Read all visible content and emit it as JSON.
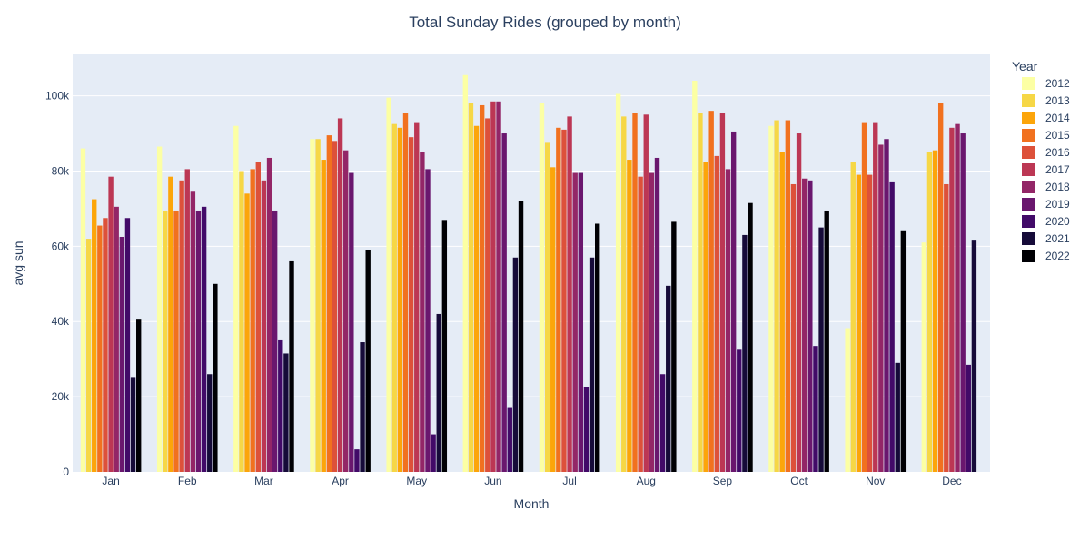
{
  "chart_data": {
    "type": "bar",
    "title": "Total Sunday Rides (grouped by month)",
    "xlabel": "Month",
    "ylabel": "avg sun",
    "ylim": [
      0,
      111000
    ],
    "yticks": [
      0,
      20000,
      40000,
      60000,
      80000,
      100000
    ],
    "ytick_labels": [
      "0",
      "20k",
      "40k",
      "60k",
      "80k",
      "100k"
    ],
    "legend_title": "Year",
    "legend_position": "right",
    "grid": true,
    "categories": [
      "Jan",
      "Feb",
      "Mar",
      "Apr",
      "May",
      "Jun",
      "Jul",
      "Aug",
      "Sep",
      "Oct",
      "Nov",
      "Dec"
    ],
    "series": [
      {
        "name": "2012",
        "color": "#fcffa4",
        "values": [
          86000,
          86500,
          92000,
          88500,
          99500,
          105500,
          98000,
          100500,
          104000,
          92000,
          38000,
          61000
        ]
      },
      {
        "name": "2013",
        "color": "#f6d746",
        "values": [
          62000,
          69500,
          80000,
          88500,
          92500,
          98000,
          87500,
          94500,
          95500,
          93500,
          82500,
          85000
        ]
      },
      {
        "name": "2014",
        "color": "#fca50a",
        "values": [
          72500,
          78500,
          74000,
          83000,
          91500,
          92000,
          81000,
          83000,
          82500,
          85000,
          79000,
          85500
        ]
      },
      {
        "name": "2015",
        "color": "#f1711f",
        "values": [
          65500,
          69500,
          80500,
          89500,
          95500,
          97500,
          91500,
          95500,
          96000,
          93500,
          93000,
          98000
        ]
      },
      {
        "name": "2016",
        "color": "#dd513a",
        "values": [
          67500,
          77500,
          82500,
          88000,
          89000,
          94000,
          91000,
          78500,
          84000,
          76500,
          79000,
          76500
        ]
      },
      {
        "name": "2017",
        "color": "#bc3754",
        "values": [
          78500,
          80500,
          77500,
          94000,
          93000,
          98500,
          94500,
          95000,
          95500,
          90000,
          93000,
          91500
        ]
      },
      {
        "name": "2018",
        "color": "#932667",
        "values": [
          70500,
          74500,
          83500,
          85500,
          85000,
          98500,
          79500,
          79500,
          80500,
          78000,
          87000,
          92500
        ]
      },
      {
        "name": "2019",
        "color": "#6a176e",
        "values": [
          62500,
          69500,
          69500,
          79500,
          80500,
          90000,
          79500,
          83500,
          90500,
          77500,
          88500,
          90000
        ]
      },
      {
        "name": "2020",
        "color": "#420a68",
        "values": [
          67500,
          70500,
          35000,
          6000,
          10000,
          17000,
          22500,
          26000,
          32500,
          33500,
          77000,
          28500
        ]
      },
      {
        "name": "2021",
        "color": "#160b39",
        "values": [
          25000,
          26000,
          31500,
          34500,
          42000,
          57000,
          57000,
          49500,
          63000,
          65000,
          29000,
          61500
        ]
      },
      {
        "name": "2022",
        "color": "#000004",
        "values": [
          40500,
          50000,
          56000,
          59000,
          67000,
          72000,
          66000,
          66500,
          71500,
          69500,
          64000,
          null
        ]
      }
    ]
  }
}
